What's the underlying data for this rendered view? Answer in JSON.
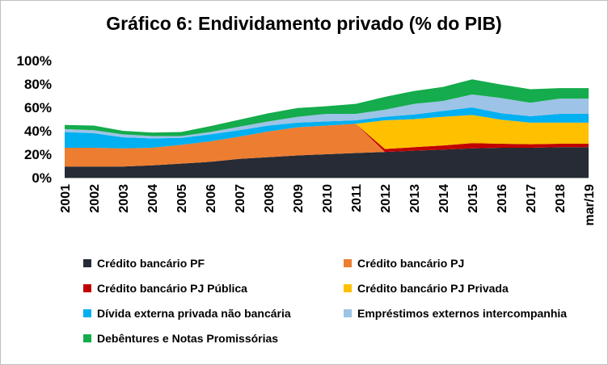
{
  "chart_data": {
    "type": "area",
    "stacked": true,
    "title": "Gráfico 6: Endividamento privado (% do PIB)",
    "xlabel": "",
    "ylabel": "",
    "ylim": [
      0,
      100
    ],
    "yticks": [
      "0%",
      "20%",
      "40%",
      "60%",
      "80%",
      "100%"
    ],
    "categories": [
      "2001",
      "2002",
      "2003",
      "2004",
      "2005",
      "2006",
      "2007",
      "2008",
      "2009",
      "2010",
      "2011",
      "2012",
      "2013",
      "2014",
      "2015",
      "2016",
      "2017",
      "2018",
      "mar/19"
    ],
    "series": [
      {
        "name": "Crédito bancário PF",
        "color": "#262b35",
        "values": [
          9.5,
          9.5,
          9.5,
          10.5,
          12,
          13.5,
          16,
          17.5,
          19,
          20,
          21,
          22,
          23,
          24,
          25,
          25.5,
          25.5,
          26,
          26
        ]
      },
      {
        "name": "Crédito bancário PJ",
        "color": "#ed7d31",
        "values": [
          16,
          16,
          15.5,
          15,
          16,
          17.5,
          19,
          22,
          24,
          24.5,
          25,
          0,
          0,
          0,
          0,
          0,
          0,
          0,
          0
        ]
      },
      {
        "name": "Crédito bancário PJ Pública",
        "color": "#c00000",
        "values": [
          0,
          0,
          0,
          0,
          0,
          0,
          0,
          0,
          0,
          0,
          0,
          2.5,
          3,
          3.5,
          4.5,
          3.5,
          3,
          3,
          3
        ]
      },
      {
        "name": "Crédito bancário PJ Privada",
        "color": "#ffc000",
        "values": [
          0,
          0,
          0,
          0,
          0,
          0,
          0,
          0,
          0,
          0,
          0,
          24.5,
          24,
          24.5,
          24,
          20.5,
          18.5,
          18,
          18
        ]
      },
      {
        "name": "Dívida externa privada não bancária",
        "color": "#00b0f0",
        "values": [
          13.5,
          12.5,
          9.5,
          8,
          6,
          6,
          5.5,
          5,
          4,
          3.5,
          3,
          3,
          4,
          5,
          6.5,
          5.5,
          5.5,
          7.5,
          7.5
        ]
      },
      {
        "name": "Empréstimos externos intercompanhia",
        "color": "#9dc3e6",
        "values": [
          2.5,
          2.5,
          2.5,
          2,
          1.5,
          2,
          3,
          3.5,
          5,
          6.5,
          5.5,
          6,
          9,
          8.5,
          11,
          13,
          11.5,
          13,
          13
        ]
      },
      {
        "name": "Debêntures e Notas Promissórias",
        "color": "#14ac4c",
        "values": [
          3.5,
          4,
          3,
          3,
          3.5,
          5,
          6,
          7,
          7.5,
          6.5,
          8.5,
          11,
          11,
          12,
          13,
          11.5,
          11.5,
          9,
          9
        ]
      }
    ],
    "legend": {
      "position": "bottom",
      "columns": 2
    }
  }
}
